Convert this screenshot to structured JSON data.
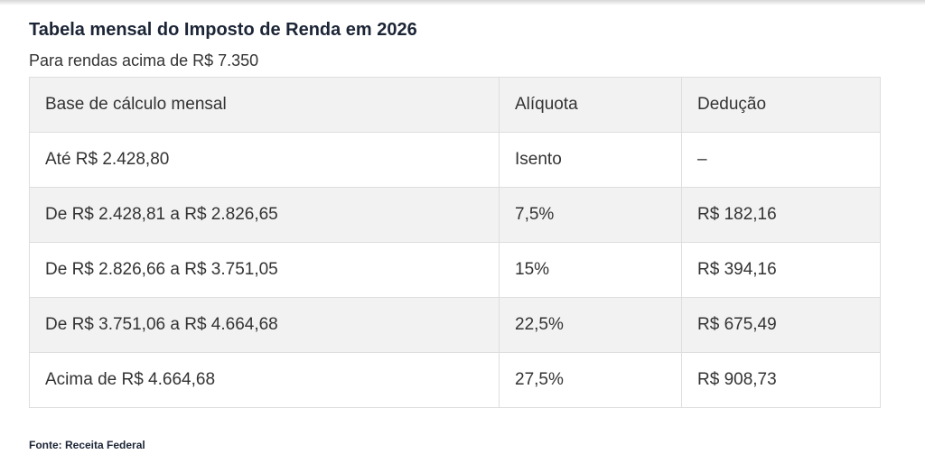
{
  "title": "Tabela mensal do Imposto de Renda em 2026",
  "subtitle": "Para rendas acima de R$ 7.350",
  "table": {
    "headers": [
      "Base de cálculo mensal",
      "Alíquota",
      "Dedução"
    ],
    "rows": [
      [
        "Até R$ 2.428,80",
        "Isento",
        "–"
      ],
      [
        "De R$ 2.428,81 a R$ 2.826,65",
        "7,5%",
        "R$ 182,16"
      ],
      [
        "De R$ 2.826,66 a R$ 3.751,05",
        "15%",
        "R$ 394,16"
      ],
      [
        "De R$ 3.751,06 a R$ 4.664,68",
        "22,5%",
        "R$ 675,49"
      ],
      [
        "Acima de R$ 4.664,68",
        "27,5%",
        "R$ 908,73"
      ]
    ]
  },
  "source": "Fonte: Receita Federal"
}
